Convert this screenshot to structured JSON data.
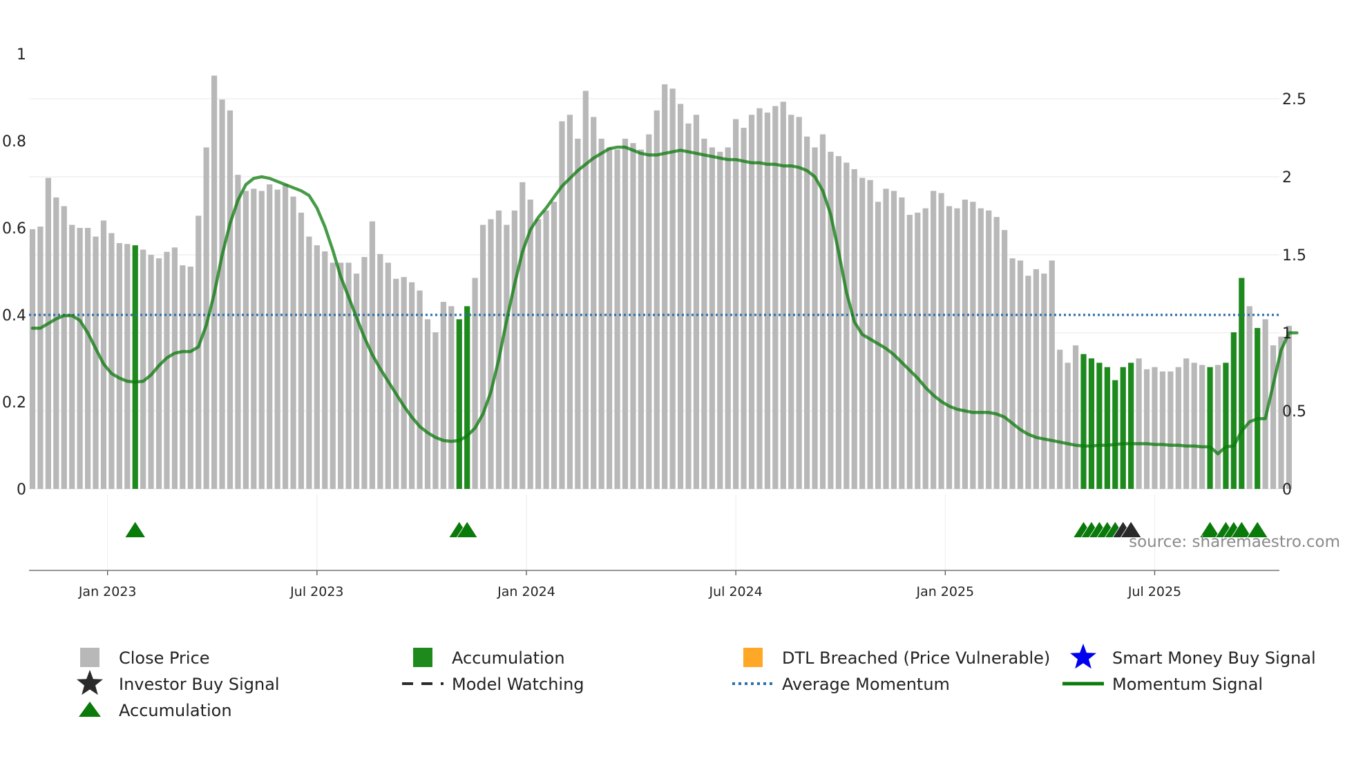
{
  "chart_data": {
    "type": "bar",
    "title": "",
    "source": "source: sharemaestro.com",
    "colors": {
      "close_price": "#b8b8b8",
      "accumulation": "#1e8a1e",
      "momentum": "#0a7a0a",
      "average_momentum": "#2d6fa8",
      "signal_accumulation": "#0a7a0a",
      "signal_black": "#2a2a2a",
      "dtl": "#ffa726",
      "smart_money": "#0000ee"
    },
    "y_left": {
      "range": [
        0,
        1
      ],
      "ticks": [
        "0",
        "0.2",
        "0.4",
        "0.6",
        "0.8",
        "1"
      ]
    },
    "y_right": {
      "range": [
        0,
        2.5
      ],
      "ticks": [
        "0",
        "0.5",
        "1",
        "1.5",
        "2",
        "2.5"
      ]
    },
    "x_ticks": [
      {
        "label": "Jan 2023",
        "week": 9.5
      },
      {
        "label": "Jul 2023",
        "week": 36
      },
      {
        "label": "Jan 2024",
        "week": 62.5
      },
      {
        "label": "Jul 2024",
        "week": 89
      },
      {
        "label": "Jan 2025",
        "week": 115.5
      },
      {
        "label": "Jul 2025",
        "week": 142
      }
    ],
    "average_momentum": 0.4,
    "close_price": [
      0.597,
      0.603,
      0.715,
      0.67,
      0.65,
      0.607,
      0.6,
      0.6,
      0.58,
      0.617,
      0.588,
      0.565,
      0.563,
      0.56,
      0.55,
      0.538,
      0.53,
      0.545,
      0.555,
      0.514,
      0.511,
      0.628,
      0.785,
      0.95,
      0.895,
      0.87,
      0.722,
      0.685,
      0.69,
      0.685,
      0.7,
      0.688,
      0.7,
      0.672,
      0.635,
      0.58,
      0.56,
      0.546,
      0.52,
      0.52,
      0.52,
      0.495,
      0.533,
      0.615,
      0.54,
      0.52,
      0.483,
      0.487,
      0.475,
      0.456,
      0.39,
      0.36,
      0.43,
      0.42,
      0.39,
      0.42,
      0.485,
      0.607,
      0.62,
      0.64,
      0.607,
      0.64,
      0.705,
      0.665,
      0.62,
      0.64,
      0.66,
      0.845,
      0.86,
      0.805,
      0.915,
      0.855,
      0.805,
      0.785,
      0.78,
      0.805,
      0.795,
      0.78,
      0.815,
      0.87,
      0.93,
      0.92,
      0.885,
      0.84,
      0.86,
      0.805,
      0.785,
      0.775,
      0.785,
      0.85,
      0.83,
      0.86,
      0.875,
      0.865,
      0.88,
      0.89,
      0.86,
      0.855,
      0.81,
      0.785,
      0.815,
      0.775,
      0.765,
      0.75,
      0.735,
      0.715,
      0.71,
      0.66,
      0.69,
      0.685,
      0.67,
      0.63,
      0.635,
      0.645,
      0.685,
      0.68,
      0.65,
      0.645,
      0.665,
      0.66,
      0.645,
      0.64,
      0.625,
      0.595,
      0.53,
      0.525,
      0.49,
      0.505,
      0.495,
      0.525,
      0.32,
      0.29,
      0.33,
      0.31,
      0.3,
      0.29,
      0.28,
      0.25,
      0.28,
      0.29,
      0.3,
      0.275,
      0.28,
      0.27,
      0.27,
      0.28,
      0.3,
      0.29,
      0.285,
      0.28,
      0.285,
      0.29,
      0.36,
      0.485,
      0.42,
      0.37,
      0.39,
      0.33,
      0.35,
      0.375
    ],
    "accumulation_weeks": [
      13,
      54,
      55,
      133,
      134,
      135,
      136,
      137,
      138,
      139,
      149,
      151,
      152,
      153,
      155
    ],
    "momentum_signal": [
      1.03,
      1.03,
      1.06,
      1.09,
      1.11,
      1.11,
      1.08,
      1.0,
      0.9,
      0.8,
      0.74,
      0.71,
      0.69,
      0.685,
      0.69,
      0.73,
      0.79,
      0.84,
      0.87,
      0.88,
      0.88,
      0.91,
      1.05,
      1.25,
      1.5,
      1.7,
      1.85,
      1.95,
      1.99,
      2.0,
      1.99,
      1.97,
      1.95,
      1.93,
      1.91,
      1.88,
      1.8,
      1.68,
      1.53,
      1.36,
      1.23,
      1.1,
      0.97,
      0.86,
      0.77,
      0.69,
      0.61,
      0.53,
      0.46,
      0.4,
      0.36,
      0.33,
      0.31,
      0.305,
      0.31,
      0.34,
      0.39,
      0.48,
      0.62,
      0.83,
      1.08,
      1.31,
      1.52,
      1.66,
      1.74,
      1.8,
      1.87,
      1.94,
      1.99,
      2.04,
      2.08,
      2.12,
      2.15,
      2.18,
      2.19,
      2.19,
      2.17,
      2.15,
      2.14,
      2.14,
      2.15,
      2.16,
      2.17,
      2.16,
      2.15,
      2.14,
      2.13,
      2.12,
      2.11,
      2.11,
      2.1,
      2.09,
      2.09,
      2.08,
      2.08,
      2.07,
      2.07,
      2.06,
      2.04,
      2.0,
      1.91,
      1.76,
      1.52,
      1.26,
      1.07,
      0.99,
      0.96,
      0.93,
      0.9,
      0.86,
      0.81,
      0.76,
      0.71,
      0.65,
      0.6,
      0.56,
      0.53,
      0.51,
      0.5,
      0.49,
      0.49,
      0.49,
      0.48,
      0.46,
      0.42,
      0.38,
      0.35,
      0.33,
      0.32,
      0.31,
      0.3,
      0.29,
      0.28,
      0.275,
      0.275,
      0.28,
      0.28,
      0.285,
      0.29,
      0.29,
      0.29,
      0.29,
      0.285,
      0.285,
      0.28,
      0.28,
      0.275,
      0.275,
      0.27,
      0.27,
      0.225,
      0.27,
      0.275,
      0.37,
      0.43,
      0.45,
      0.45,
      0.67,
      0.89,
      1.0,
      1.0
    ],
    "signals_accumulation": [
      13,
      54,
      55,
      133,
      134,
      135,
      136,
      137,
      149,
      151,
      152,
      153,
      155
    ],
    "signals_black": [
      138,
      139
    ],
    "legend": [
      {
        "label": "Close Price",
        "symbol": "square",
        "color_key": "close_price"
      },
      {
        "label": "Accumulation",
        "symbol": "square",
        "color_key": "accumulation"
      },
      {
        "label": "DTL Breached (Price Vulnerable)",
        "symbol": "square",
        "color_key": "dtl"
      },
      {
        "label": "Smart Money Buy Signal",
        "symbol": "star",
        "color_key": "smart_money"
      },
      {
        "label": "Investor Buy Signal",
        "symbol": "star",
        "color_key": "signal_black"
      },
      {
        "label": "Model Watching",
        "symbol": "dashed",
        "color_key": "signal_black"
      },
      {
        "label": "Average Momentum",
        "symbol": "dotted",
        "color_key": "average_momentum"
      },
      {
        "label": "Momentum Signal",
        "symbol": "line",
        "color_key": "momentum"
      },
      {
        "label": "Accumulation",
        "symbol": "triangle",
        "color_key": "signal_accumulation"
      }
    ]
  }
}
